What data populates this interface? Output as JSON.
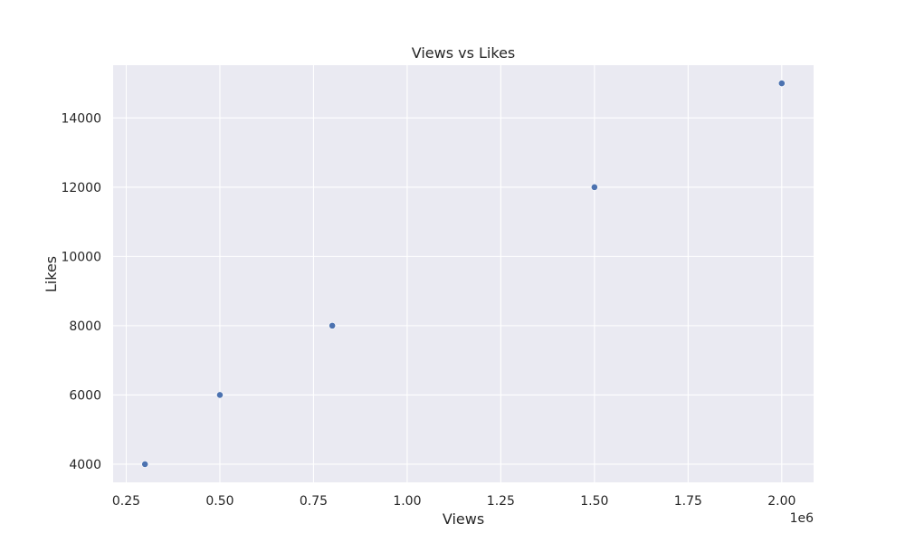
{
  "chart_data": {
    "type": "scatter",
    "title": "Views vs Likes",
    "xlabel": "Views",
    "ylabel": "Likes",
    "x_offset_label": "1e6",
    "x": [
      300000,
      500000,
      800000,
      1500000,
      2000000
    ],
    "y": [
      4000,
      6000,
      8000,
      12000,
      15000
    ],
    "xlim": [
      215000,
      2085000
    ],
    "ylim": [
      3475,
      15525
    ],
    "xticks": [
      250000,
      500000,
      750000,
      1000000,
      1250000,
      1500000,
      1750000,
      2000000
    ],
    "xtick_labels": [
      "0.25",
      "0.50",
      "0.75",
      "1.00",
      "1.25",
      "1.50",
      "1.75",
      "2.00"
    ],
    "yticks": [
      4000,
      6000,
      8000,
      10000,
      12000,
      14000
    ],
    "ytick_labels": [
      "4000",
      "6000",
      "8000",
      "10000",
      "12000",
      "14000"
    ],
    "grid": true,
    "colors": {
      "background": "#eaeaf2",
      "grid": "#ffffff",
      "marker": "#4c72b0"
    }
  }
}
